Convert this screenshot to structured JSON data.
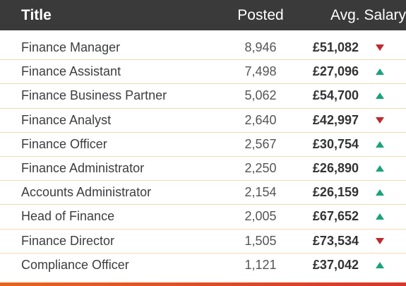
{
  "header": {
    "title_label": "Title",
    "posted_label": "Posted",
    "salary_label": "Avg. Salary"
  },
  "rows": [
    {
      "title": "Finance Manager",
      "posted": "8,946",
      "salary": "£51,082",
      "trend": "down"
    },
    {
      "title": "Finance Assistant",
      "posted": "7,498",
      "salary": "£27,096",
      "trend": "up"
    },
    {
      "title": "Finance Business Partner",
      "posted": "5,062",
      "salary": "£54,700",
      "trend": "up"
    },
    {
      "title": "Finance Analyst",
      "posted": "2,640",
      "salary": "£42,997",
      "trend": "down"
    },
    {
      "title": "Finance Officer",
      "posted": "2,567",
      "salary": "£30,754",
      "trend": "up"
    },
    {
      "title": "Finance Administrator",
      "posted": "2,250",
      "salary": "£26,890",
      "trend": "up"
    },
    {
      "title": "Accounts Administrator",
      "posted": "2,154",
      "salary": "£26,159",
      "trend": "up"
    },
    {
      "title": "Head of Finance",
      "posted": "2,005",
      "salary": "£67,652",
      "trend": "up"
    },
    {
      "title": "Finance Director",
      "posted": "1,505",
      "salary": "£73,534",
      "trend": "down"
    },
    {
      "title": "Compliance Officer",
      "posted": "1,121",
      "salary": "£37,042",
      "trend": "up"
    }
  ],
  "colors": {
    "header_bg": "#3a3a3a",
    "up": "#1aa37a",
    "down": "#c0282d",
    "divider": "#f1d9b8",
    "bottom_bar_start": "#e8641e",
    "bottom_bar_end": "#d9352a"
  },
  "icons": {
    "up": "triangle-up-icon",
    "down": "triangle-down-icon"
  }
}
